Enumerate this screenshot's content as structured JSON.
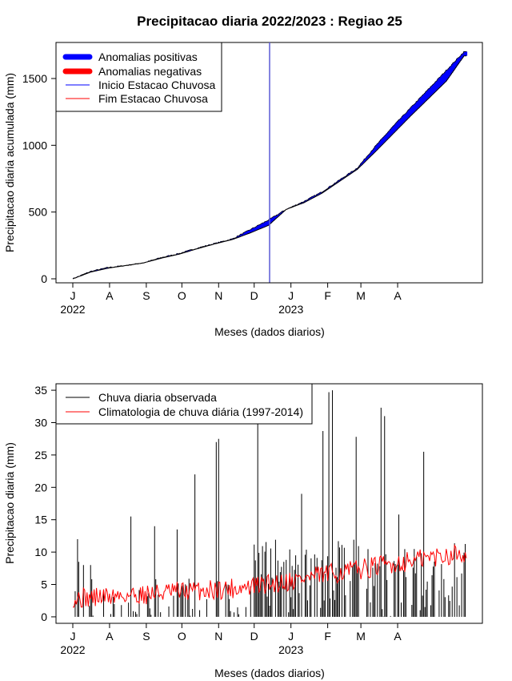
{
  "title": "Precipitacao diaria 2022/2023 : Regiao 25",
  "top_chart": {
    "ylabel": "Precipitacao diaria acumulada (mm)",
    "xlabel": "Meses (dados diarios)",
    "legend": [
      "Anomalias positivas",
      "Anomalias negativas",
      "Inicio Estacao Chuvosa",
      "Fim Estacao Chuvosa"
    ]
  },
  "bottom_chart": {
    "ylabel": "Precipitacao diaria (mm)",
    "xlabel": "Meses (dados diarios)",
    "legend": [
      "Chuva diaria observada",
      "Climatologia de chuva diária (1997-2014)"
    ]
  },
  "chart_data": [
    {
      "type": "area",
      "title": "Precipitacao diaria 2022/2023 : Regiao 25",
      "xlabel": "Meses (dados diarios)",
      "ylabel": "Precipitacao diaria acumulada (mm)",
      "x_ticks": [
        "J",
        "A",
        "S",
        "O",
        "N",
        "D",
        "J",
        "F",
        "M",
        "A"
      ],
      "year_labels": [
        {
          "label": "2022",
          "at": "J"
        },
        {
          "label": "2023",
          "at": "J"
        }
      ],
      "y_ticks": [
        0,
        500,
        1000,
        1500
      ],
      "ylim": [
        -30,
        1770
      ],
      "legend_position": "top-left",
      "colors": {
        "positive": "#0000ff",
        "negative": "#ff0000",
        "inicio": "#0000ff",
        "fim": "#ff0000",
        "observed": "#000000"
      },
      "series": [
        {
          "name": "Anomalias positivas",
          "color": "#0000ff"
        },
        {
          "name": "Anomalias negativas",
          "color": "#ff0000"
        }
      ],
      "observed_knots": [
        [
          0,
          0
        ],
        [
          15,
          55
        ],
        [
          30,
          85
        ],
        [
          45,
          100
        ],
        [
          60,
          120
        ],
        [
          75,
          160
        ],
        [
          90,
          190
        ],
        [
          105,
          230
        ],
        [
          120,
          265
        ],
        [
          135,
          300
        ],
        [
          150,
          370
        ],
        [
          165,
          440
        ],
        [
          180,
          520
        ],
        [
          195,
          580
        ],
        [
          210,
          650
        ],
        [
          225,
          740
        ],
        [
          240,
          830
        ],
        [
          255,
          990
        ],
        [
          270,
          1140
        ],
        [
          285,
          1280
        ],
        [
          300,
          1420
        ],
        [
          315,
          1560
        ],
        [
          330,
          1700
        ]
      ],
      "climatology_knots": [
        [
          0,
          0
        ],
        [
          15,
          50
        ],
        [
          30,
          80
        ],
        [
          45,
          100
        ],
        [
          60,
          120
        ],
        [
          75,
          155
        ],
        [
          90,
          185
        ],
        [
          105,
          225
        ],
        [
          120,
          262
        ],
        [
          135,
          295
        ],
        [
          150,
          345
        ],
        [
          165,
          400
        ],
        [
          180,
          520
        ],
        [
          195,
          570
        ],
        [
          210,
          640
        ],
        [
          225,
          730
        ],
        [
          240,
          820
        ],
        [
          255,
          950
        ],
        [
          270,
          1085
        ],
        [
          285,
          1220
        ],
        [
          300,
          1350
        ],
        [
          315,
          1480
        ],
        [
          330,
          1670
        ]
      ],
      "inicio_estacao_chuvosa_day": 166
    },
    {
      "type": "bar",
      "title": "",
      "xlabel": "Meses (dados diarios)",
      "ylabel": "Precipitacao diaria (mm)",
      "x_ticks": [
        "J",
        "A",
        "S",
        "O",
        "N",
        "D",
        "J",
        "F",
        "M",
        "A"
      ],
      "year_labels": [
        {
          "label": "2022",
          "at": "J"
        },
        {
          "label": "2023",
          "at": "J"
        }
      ],
      "y_ticks": [
        0,
        5,
        10,
        15,
        20,
        25,
        30,
        35
      ],
      "ylim": [
        -1,
        36
      ],
      "legend_position": "top-left",
      "series": [
        {
          "name": "Chuva diaria observada",
          "type": "bar",
          "color": "#000000"
        },
        {
          "name": "Climatologia de chuva diária (1997-2014)",
          "type": "line",
          "color": "#ff0000"
        }
      ],
      "notable_peaks": [
        [
          4,
          12
        ],
        [
          5,
          8.5
        ],
        [
          9,
          8
        ],
        [
          15,
          8
        ],
        [
          49,
          15.5
        ],
        [
          69,
          14
        ],
        [
          88,
          13.5
        ],
        [
          103,
          22
        ],
        [
          121,
          27
        ],
        [
          123,
          27.5
        ],
        [
          156,
          35
        ],
        [
          193,
          19
        ],
        [
          211,
          28.7
        ],
        [
          216,
          34.7
        ],
        [
          219,
          35
        ],
        [
          239,
          27.8
        ],
        [
          260,
          32.3
        ],
        [
          263,
          31
        ],
        [
          275,
          15.8
        ],
        [
          296,
          25.5
        ]
      ]
    }
  ]
}
